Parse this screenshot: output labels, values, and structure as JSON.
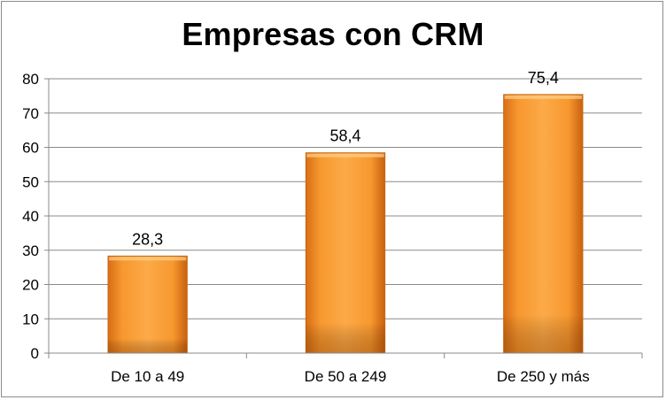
{
  "chart_data": {
    "type": "bar",
    "title": "Empresas con CRM",
    "xlabel": "",
    "ylabel": "",
    "categories": [
      "De 10 a 49",
      "De 50 a 249",
      "De 250 y más"
    ],
    "values": [
      28.3,
      58.4,
      75.4
    ],
    "data_labels": [
      "28,3",
      "58,4",
      "75,4"
    ],
    "ylim": [
      0,
      80
    ],
    "yticks": [
      0,
      10,
      20,
      30,
      40,
      50,
      60,
      70,
      80
    ],
    "grid": true,
    "legend": "none",
    "bar_color": "#f39c3a"
  }
}
